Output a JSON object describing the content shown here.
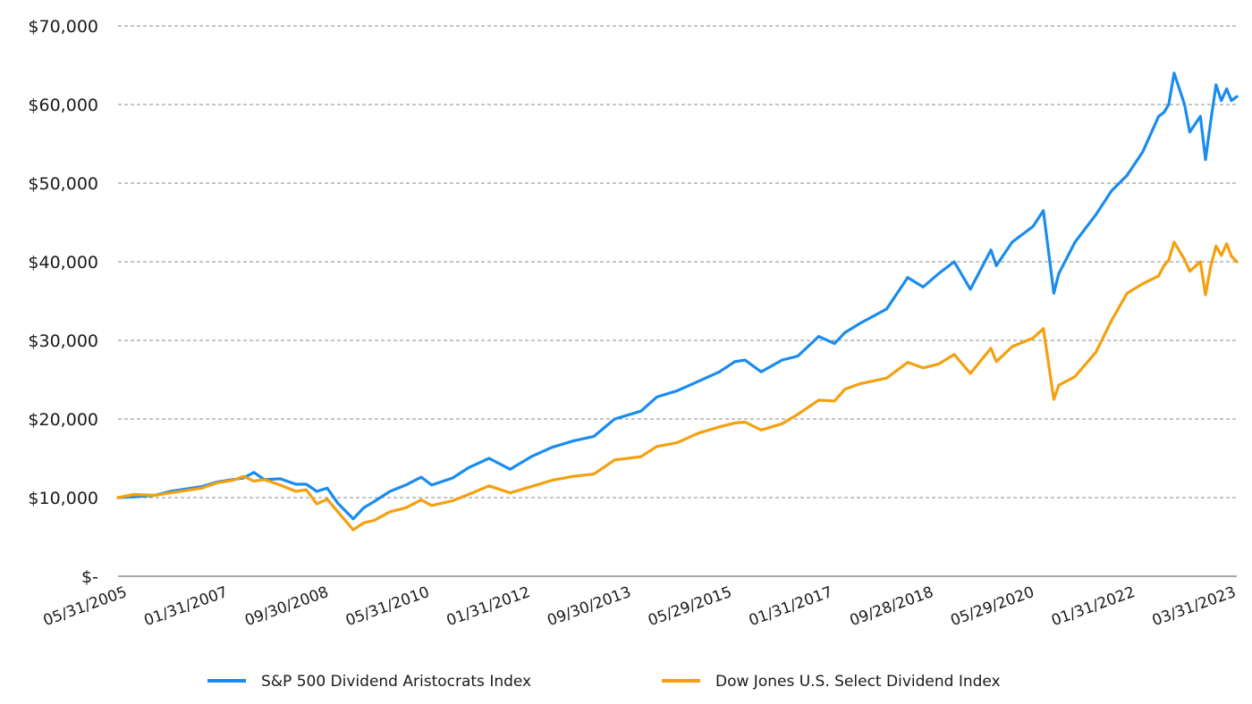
{
  "chart_data": {
    "type": "line",
    "title": "",
    "xlabel": "",
    "ylabel": "",
    "ylim": [
      0,
      70000
    ],
    "grid": true,
    "legend_position": "bottom",
    "y_ticks": [
      {
        "value": 0,
        "label": "$-"
      },
      {
        "value": 10000,
        "label": "$10,000"
      },
      {
        "value": 20000,
        "label": "$20,000"
      },
      {
        "value": 30000,
        "label": "$30,000"
      },
      {
        "value": 40000,
        "label": "$40,000"
      },
      {
        "value": 50000,
        "label": "$50,000"
      },
      {
        "value": 60000,
        "label": "$60,000"
      },
      {
        "value": 70000,
        "label": "$70,000"
      }
    ],
    "x_tick_labels": [
      "05/31/2005",
      "01/31/2007",
      "09/30/2008",
      "05/31/2010",
      "01/31/2012",
      "09/30/2013",
      "05/29/2015",
      "01/31/2017",
      "09/28/2018",
      "05/29/2020",
      "01/31/2022",
      "03/31/2023"
    ],
    "series": [
      {
        "name": "S&P 500 Dividend Aristocrats Index",
        "color": "#1a8cf0",
        "points": [
          [
            "2005-05-31",
            10000
          ],
          [
            "2005-08-31",
            10100
          ],
          [
            "2005-12-31",
            10300
          ],
          [
            "2006-03-31",
            10800
          ],
          [
            "2006-06-30",
            11100
          ],
          [
            "2006-09-30",
            11400
          ],
          [
            "2006-12-31",
            12000
          ],
          [
            "2007-03-31",
            12300
          ],
          [
            "2007-05-31",
            12500
          ],
          [
            "2007-07-31",
            13200
          ],
          [
            "2007-09-30",
            12300
          ],
          [
            "2007-12-31",
            12400
          ],
          [
            "2008-03-31",
            11700
          ],
          [
            "2008-05-31",
            11700
          ],
          [
            "2008-07-31",
            10800
          ],
          [
            "2008-09-30",
            11200
          ],
          [
            "2008-11-30",
            9300
          ],
          [
            "2009-02-28",
            7300
          ],
          [
            "2009-04-30",
            8700
          ],
          [
            "2009-06-30",
            9500
          ],
          [
            "2009-09-30",
            10800
          ],
          [
            "2009-12-31",
            11600
          ],
          [
            "2010-03-31",
            12600
          ],
          [
            "2010-05-31",
            11600
          ],
          [
            "2010-09-30",
            12500
          ],
          [
            "2010-12-31",
            13800
          ],
          [
            "2011-04-30",
            15000
          ],
          [
            "2011-08-31",
            13600
          ],
          [
            "2011-12-31",
            15200
          ],
          [
            "2012-04-30",
            16400
          ],
          [
            "2012-08-31",
            17200
          ],
          [
            "2012-12-31",
            17800
          ],
          [
            "2013-04-30",
            20000
          ],
          [
            "2013-09-30",
            21000
          ],
          [
            "2013-12-31",
            22800
          ],
          [
            "2014-04-30",
            23600
          ],
          [
            "2014-08-31",
            24800
          ],
          [
            "2014-12-31",
            26000
          ],
          [
            "2015-03-31",
            27300
          ],
          [
            "2015-05-29",
            27500
          ],
          [
            "2015-08-31",
            26000
          ],
          [
            "2015-12-31",
            27500
          ],
          [
            "2016-03-31",
            28000
          ],
          [
            "2016-07-31",
            30500
          ],
          [
            "2016-10-31",
            29600
          ],
          [
            "2016-12-31",
            31000
          ],
          [
            "2017-03-31",
            32200
          ],
          [
            "2017-08-31",
            34000
          ],
          [
            "2017-12-31",
            38000
          ],
          [
            "2018-03-31",
            36800
          ],
          [
            "2018-06-30",
            38500
          ],
          [
            "2018-09-28",
            40000
          ],
          [
            "2018-12-31",
            36500
          ],
          [
            "2019-04-30",
            41500
          ],
          [
            "2019-05-31",
            39500
          ],
          [
            "2019-08-31",
            42500
          ],
          [
            "2019-12-31",
            44500
          ],
          [
            "2020-02-29",
            46500
          ],
          [
            "2020-04-30",
            36000
          ],
          [
            "2020-05-29",
            38500
          ],
          [
            "2020-08-31",
            42500
          ],
          [
            "2020-12-31",
            46000
          ],
          [
            "2021-03-31",
            49000
          ],
          [
            "2021-06-30",
            51000
          ],
          [
            "2021-09-30",
            54000
          ],
          [
            "2021-12-31",
            58500
          ],
          [
            "2022-01-31",
            59000
          ],
          [
            "2022-02-28",
            60000
          ],
          [
            "2022-03-31",
            64000
          ],
          [
            "2022-05-31",
            60000
          ],
          [
            "2022-06-30",
            56500
          ],
          [
            "2022-08-31",
            58500
          ],
          [
            "2022-09-30",
            53000
          ],
          [
            "2022-10-31",
            58000
          ],
          [
            "2022-11-30",
            62500
          ],
          [
            "2022-12-31",
            60500
          ],
          [
            "2023-01-31",
            62000
          ],
          [
            "2023-02-28",
            60500
          ],
          [
            "2023-03-31",
            61000
          ]
        ]
      },
      {
        "name": "Dow Jones U.S. Select Dividend Index",
        "color": "#f5a00e",
        "points": [
          [
            "2005-05-31",
            10000
          ],
          [
            "2005-08-31",
            10400
          ],
          [
            "2005-12-31",
            10300
          ],
          [
            "2006-03-31",
            10600
          ],
          [
            "2006-06-30",
            10900
          ],
          [
            "2006-09-30",
            11200
          ],
          [
            "2006-12-31",
            11900
          ],
          [
            "2007-03-31",
            12200
          ],
          [
            "2007-05-31",
            12700
          ],
          [
            "2007-07-31",
            12100
          ],
          [
            "2007-09-30",
            12300
          ],
          [
            "2007-12-31",
            11600
          ],
          [
            "2008-03-31",
            10800
          ],
          [
            "2008-05-31",
            11000
          ],
          [
            "2008-07-31",
            9200
          ],
          [
            "2008-09-30",
            9800
          ],
          [
            "2008-11-30",
            8200
          ],
          [
            "2009-02-28",
            5900
          ],
          [
            "2009-04-30",
            6800
          ],
          [
            "2009-06-30",
            7100
          ],
          [
            "2009-09-30",
            8200
          ],
          [
            "2009-12-31",
            8700
          ],
          [
            "2010-03-31",
            9700
          ],
          [
            "2010-05-31",
            9000
          ],
          [
            "2010-09-30",
            9600
          ],
          [
            "2010-12-31",
            10400
          ],
          [
            "2011-04-30",
            11500
          ],
          [
            "2011-08-31",
            10600
          ],
          [
            "2011-12-31",
            11400
          ],
          [
            "2012-04-30",
            12200
          ],
          [
            "2012-08-31",
            12700
          ],
          [
            "2012-12-31",
            13000
          ],
          [
            "2013-04-30",
            14800
          ],
          [
            "2013-09-30",
            15200
          ],
          [
            "2013-12-31",
            16500
          ],
          [
            "2014-04-30",
            17000
          ],
          [
            "2014-08-31",
            18200
          ],
          [
            "2014-12-31",
            19000
          ],
          [
            "2015-03-31",
            19500
          ],
          [
            "2015-05-29",
            19600
          ],
          [
            "2015-08-31",
            18600
          ],
          [
            "2015-12-31",
            19400
          ],
          [
            "2016-03-31",
            20600
          ],
          [
            "2016-07-31",
            22400
          ],
          [
            "2016-10-31",
            22300
          ],
          [
            "2016-12-31",
            23800
          ],
          [
            "2017-03-31",
            24500
          ],
          [
            "2017-08-31",
            25200
          ],
          [
            "2017-12-31",
            27200
          ],
          [
            "2018-03-31",
            26500
          ],
          [
            "2018-06-30",
            27000
          ],
          [
            "2018-09-28",
            28200
          ],
          [
            "2018-12-31",
            25800
          ],
          [
            "2019-04-30",
            29000
          ],
          [
            "2019-05-31",
            27300
          ],
          [
            "2019-08-31",
            29200
          ],
          [
            "2019-12-31",
            30300
          ],
          [
            "2020-02-29",
            31500
          ],
          [
            "2020-04-30",
            22500
          ],
          [
            "2020-05-29",
            24300
          ],
          [
            "2020-08-31",
            25400
          ],
          [
            "2020-12-31",
            28500
          ],
          [
            "2021-03-31",
            32500
          ],
          [
            "2021-06-30",
            36000
          ],
          [
            "2021-09-30",
            37200
          ],
          [
            "2021-12-31",
            38200
          ],
          [
            "2022-01-31",
            39500
          ],
          [
            "2022-02-28",
            40200
          ],
          [
            "2022-03-31",
            42500
          ],
          [
            "2022-05-31",
            40300
          ],
          [
            "2022-06-30",
            38800
          ],
          [
            "2022-08-31",
            40000
          ],
          [
            "2022-09-30",
            35800
          ],
          [
            "2022-10-31",
            39500
          ],
          [
            "2022-11-30",
            42000
          ],
          [
            "2022-12-31",
            40800
          ],
          [
            "2023-01-31",
            42300
          ],
          [
            "2023-02-28",
            40700
          ],
          [
            "2023-03-31",
            40000
          ]
        ]
      }
    ]
  }
}
